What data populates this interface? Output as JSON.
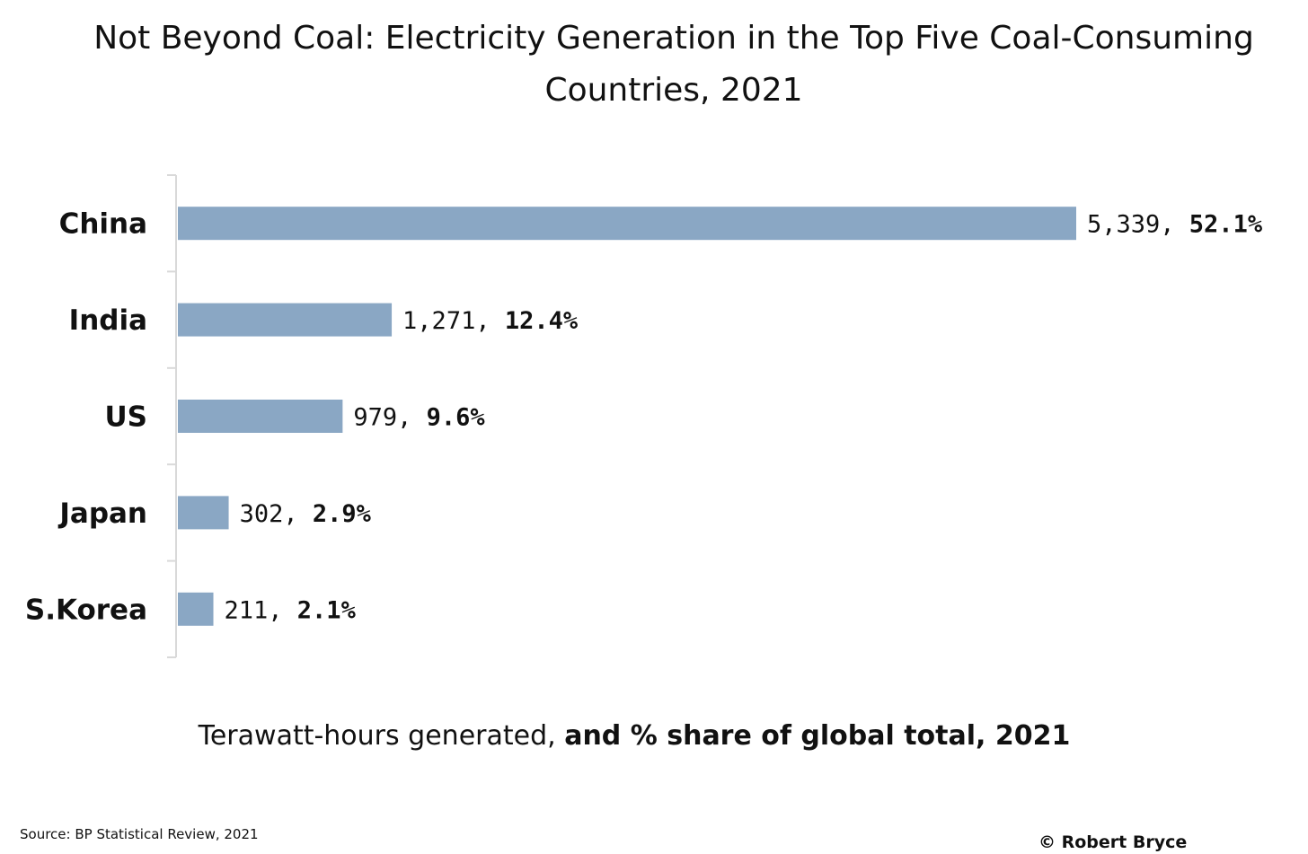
{
  "chart_data": {
    "type": "bar",
    "orientation": "horizontal",
    "title": "Not Beyond Coal: Electricity Generation in the Top Five Coal-Consuming Countries, 2021",
    "categories": [
      "China",
      "India",
      "US",
      "Japan",
      "S.Korea"
    ],
    "values": [
      5339,
      1271,
      979,
      302,
      211
    ],
    "value_labels": [
      "5,339,",
      "1,271,",
      "979,",
      "302,",
      "211,"
    ],
    "share_labels": [
      "52.1%",
      "12.4%",
      "9.6%",
      "2.9%",
      "2.1%"
    ],
    "xlabel_part1": "Terawatt-hours generated, ",
    "xlabel_part2": "and % share of global total, 2021",
    "ylabel": "",
    "grid": false,
    "bar_color": "#8aa7c4",
    "axis_color": "#d9d9d9"
  },
  "footer": {
    "source": "Source:  BP Statistical Review, 2021",
    "credit": "© Robert Bryce"
  }
}
